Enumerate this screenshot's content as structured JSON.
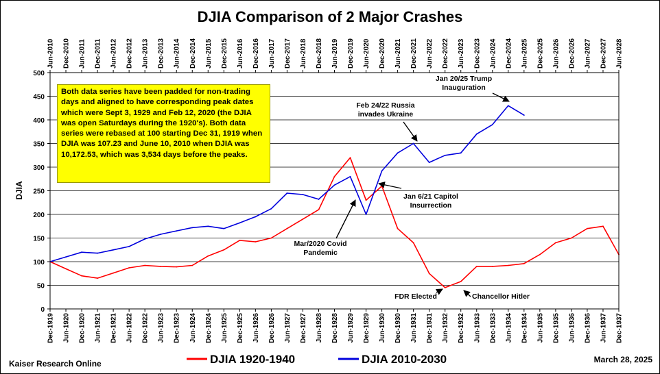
{
  "chart_data": {
    "type": "line",
    "title": "DJIA Comparison of 2 Major Crashes",
    "ylabel": "DJIA",
    "ylim": [
      0,
      500
    ],
    "yticks": [
      0,
      50,
      100,
      150,
      200,
      250,
      300,
      350,
      400,
      450,
      500
    ],
    "grid": true,
    "legend_position": "bottom",
    "top_axis_labels": [
      "Jun-2010",
      "Dec-2010",
      "Jun-2011",
      "Dec-2011",
      "Jun-2012",
      "Dec-2012",
      "Jun-2013",
      "Dec-2013",
      "Jun-2014",
      "Dec-2014",
      "Jun-2015",
      "Dec-2015",
      "Jun-2016",
      "Dec-2016",
      "Jun-2017",
      "Dec-2017",
      "Jun-2018",
      "Dec-2018",
      "Jun-2019",
      "Dec-2019",
      "Jun-2020",
      "Dec-2020",
      "Jun-2021",
      "Dec-2021",
      "Jun-2022",
      "Dec-2022",
      "Jun-2023",
      "Dec-2023",
      "Jun-2024",
      "Dec-2024",
      "Jun-2025",
      "Dec-2025",
      "Jun-2026",
      "Dec-2026",
      "Jun-2027",
      "Dec-2027",
      "Jun-2028"
    ],
    "bottom_axis_labels": [
      "Dec-1919",
      "Jun-1920",
      "Dec-1920",
      "Jun-1921",
      "Dec-1921",
      "Jun-1922",
      "Dec-1922",
      "Jun-1923",
      "Dec-1923",
      "Jun-1924",
      "Dec-1924",
      "Jun-1925",
      "Dec-1925",
      "Jun-1926",
      "Dec-1926",
      "Jun-1927",
      "Dec-1927",
      "Jun-1928",
      "Dec-1928",
      "Jun-1929",
      "Dec-1929",
      "Jun-1930",
      "Dec-1930",
      "Jun-1931",
      "Dec-1931",
      "Jun-1932",
      "Dec-1932",
      "Jun-1933",
      "Dec-1933",
      "Jun-1934",
      "Dec-1934",
      "Jun-1935",
      "Dec-1935",
      "Jun-1936",
      "Dec-1936",
      "Jun-1937",
      "Dec-1937"
    ],
    "series": [
      {
        "name": "DJIA 1920-1940",
        "color": "#ff0000",
        "x": [
          "Dec-1919",
          "Jun-1920",
          "Dec-1920",
          "Jun-1921",
          "Dec-1921",
          "Jun-1922",
          "Dec-1922",
          "Jun-1923",
          "Dec-1923",
          "Jun-1924",
          "Dec-1924",
          "Jun-1925",
          "Dec-1925",
          "Jun-1926",
          "Dec-1926",
          "Jun-1927",
          "Dec-1927",
          "Jun-1928",
          "Dec-1928",
          "Jun-1929",
          "Dec-1929",
          "Jun-1930",
          "Dec-1930",
          "Jun-1931",
          "Dec-1931",
          "Jun-1932",
          "Dec-1932",
          "Jun-1933",
          "Dec-1933",
          "Jun-1934",
          "Dec-1934",
          "Jun-1935",
          "Dec-1935",
          "Jun-1936",
          "Dec-1936",
          "Jun-1937",
          "Dec-1937"
        ],
        "values": [
          100,
          85,
          70,
          65,
          76,
          87,
          92,
          90,
          89,
          92,
          112,
          125,
          145,
          142,
          150,
          170,
          190,
          210,
          280,
          320,
          230,
          260,
          170,
          140,
          75,
          45,
          58,
          90,
          90,
          92,
          96,
          115,
          140,
          150,
          170,
          175,
          115
        ]
      },
      {
        "name": "DJIA 2010-2030",
        "color": "#0000dd",
        "x": [
          "Jun-2010",
          "Dec-2010",
          "Jun-2011",
          "Dec-2011",
          "Jun-2012",
          "Dec-2012",
          "Jun-2013",
          "Dec-2013",
          "Jun-2014",
          "Dec-2014",
          "Jun-2015",
          "Dec-2015",
          "Jun-2016",
          "Dec-2016",
          "Jun-2017",
          "Dec-2017",
          "Jun-2018",
          "Dec-2018",
          "Jun-2019",
          "Dec-2019",
          "Jun-2020",
          "Dec-2020",
          "Jun-2021",
          "Dec-2021",
          "Jun-2022",
          "Dec-2022",
          "Jun-2023",
          "Dec-2023",
          "Jun-2024",
          "Dec-2024",
          "Jun-2025"
        ],
        "values": [
          100,
          110,
          120,
          118,
          125,
          132,
          148,
          158,
          165,
          172,
          175,
          170,
          182,
          195,
          212,
          245,
          242,
          232,
          262,
          280,
          200,
          292,
          330,
          350,
          310,
          325,
          330,
          370,
          390,
          430,
          410
        ]
      }
    ],
    "annotations": [
      {
        "id": "trump",
        "lines": [
          "Jan 20/25 Trump",
          "Inauguration"
        ]
      },
      {
        "id": "russia",
        "lines": [
          "Feb 24/22 Russia",
          "invades Ukraine"
        ]
      },
      {
        "id": "capitol",
        "lines": [
          "Jan 6/21 Capitol",
          "Insurrection"
        ]
      },
      {
        "id": "covid",
        "lines": [
          "Mar/2020 Covid",
          "Pandemic"
        ]
      },
      {
        "id": "fdr",
        "lines": [
          "FDR Elected"
        ]
      },
      {
        "id": "hitler",
        "lines": [
          "Chancellor Hitler"
        ]
      }
    ]
  },
  "note": "Both data series have been padded for non-trading days and aligned to have corresponding peak dates which were Sept 3, 1929 and Feb 12, 2020 (the DJIA was open Saturdays during the 1920's). Both data series were rebased at 100 starting Dec 31, 1919 when DJIA was 107.23 and June 10, 2010 when DJIA was 10,172.53, which was 3,534 days before the peaks.",
  "footer": {
    "source": "Kaiser Research Online",
    "date": "March 28, 2025"
  }
}
